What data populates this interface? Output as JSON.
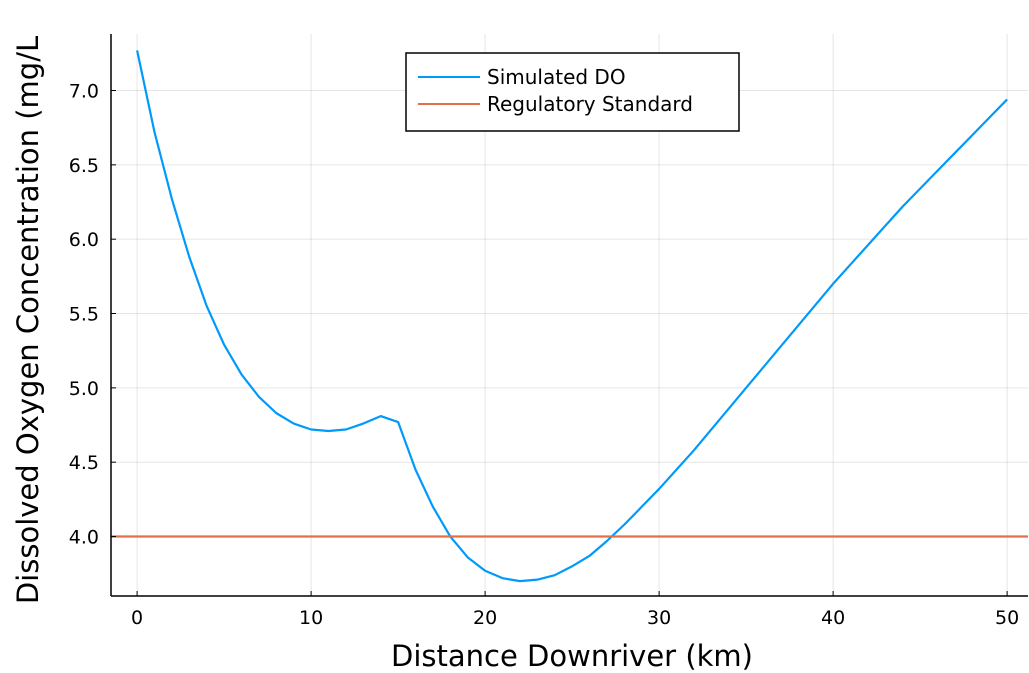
{
  "chart_data": {
    "type": "line",
    "xlabel": "Distance Downriver (km)",
    "ylabel": "Dissolved Oxygen Concentration (mg/L",
    "xlim": [
      -1.5,
      51.2
    ],
    "ylim": [
      3.6,
      7.38
    ],
    "xticks": [
      0,
      10,
      20,
      30,
      40,
      50
    ],
    "xtick_labels": [
      "0",
      "10",
      "20",
      "30",
      "40",
      "50"
    ],
    "yticks": [
      4.0,
      4.5,
      5.0,
      5.5,
      6.0,
      6.5,
      7.0
    ],
    "ytick_labels": [
      "4.0",
      "4.5",
      "5.0",
      "5.5",
      "6.0",
      "6.5",
      "7.0"
    ],
    "grid": true,
    "legend_position": "top-center",
    "series": [
      {
        "name": "Simulated DO",
        "color": "#009AFA",
        "x": [
          0,
          1,
          2,
          3,
          4,
          5,
          6,
          7,
          8,
          9,
          10,
          11,
          12,
          13,
          14,
          15,
          16,
          17,
          18,
          19,
          20,
          21,
          22,
          23,
          24,
          25,
          26,
          27,
          28,
          29,
          30,
          31,
          32,
          33,
          34,
          35,
          36,
          37,
          38,
          39,
          40,
          41,
          42,
          43,
          44,
          45,
          46,
          47,
          48,
          49,
          50
        ],
        "y": [
          7.27,
          6.72,
          6.27,
          5.88,
          5.55,
          5.29,
          5.09,
          4.94,
          4.83,
          4.76,
          4.72,
          4.71,
          4.72,
          4.76,
          4.81,
          4.77,
          4.45,
          4.2,
          4.0,
          3.86,
          3.77,
          3.72,
          3.7,
          3.71,
          3.74,
          3.8,
          3.87,
          3.97,
          4.08,
          4.2,
          4.32,
          4.45,
          4.58,
          4.72,
          4.86,
          5.0,
          5.14,
          5.28,
          5.42,
          5.56,
          5.7,
          5.83,
          5.96,
          6.09,
          6.22,
          6.34,
          6.46,
          6.58,
          6.7,
          6.82,
          6.94
        ]
      },
      {
        "name": "Regulatory Standard",
        "color": "#E26F46",
        "x": [
          -1.5,
          51.2
        ],
        "y": [
          4.0,
          4.0
        ]
      }
    ]
  }
}
